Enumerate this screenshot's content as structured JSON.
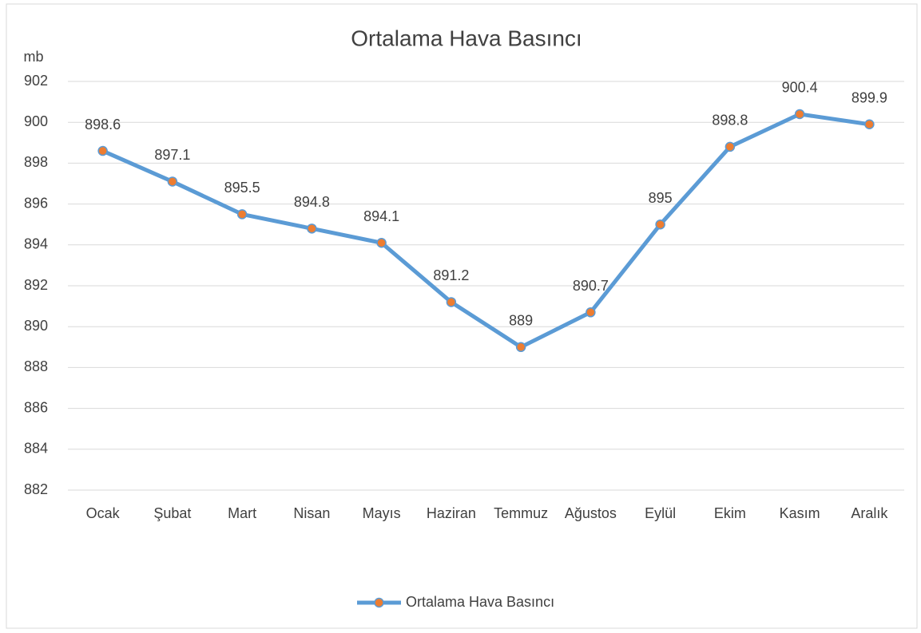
{
  "chart_data": {
    "type": "line",
    "title": "Ortalama Hava Basıncı",
    "y_label": "mb",
    "categories": [
      "Ocak",
      "Şubat",
      "Mart",
      "Nisan",
      "Mayıs",
      "Haziran",
      "Temmuz",
      "Ağustos",
      "Eylül",
      "Ekim",
      "Kasım",
      "Aralık"
    ],
    "series": [
      {
        "name": "Ortalama Hava Basıncı",
        "color": "#5b9bd5",
        "marker_color": "#ed7d31",
        "values": [
          898.6,
          897.1,
          895.5,
          894.8,
          894.1,
          891.2,
          889,
          890.7,
          895,
          898.8,
          900.4,
          899.9
        ]
      }
    ],
    "ylim": [
      882,
      902
    ],
    "yticks": [
      882,
      884,
      886,
      888,
      890,
      892,
      894,
      896,
      898,
      900,
      902
    ],
    "grid": true,
    "legend": "bottom"
  }
}
